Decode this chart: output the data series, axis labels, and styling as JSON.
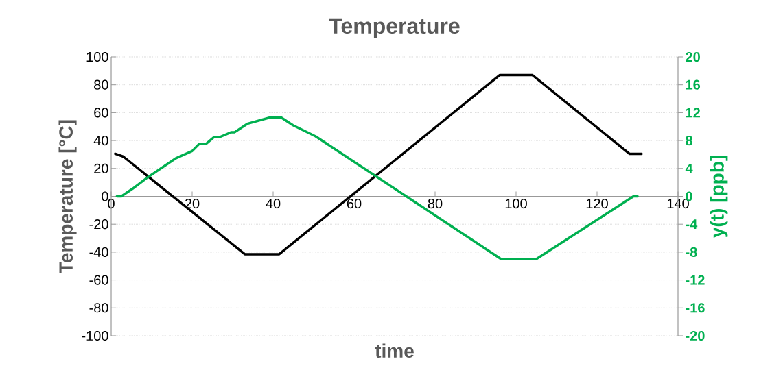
{
  "chart_data": {
    "type": "line",
    "title": "Temperature",
    "xlabel": "time",
    "ylabel": "Temperature [°C]",
    "y2label": "y(t) [ppb]",
    "xlim": [
      0,
      140
    ],
    "xticks": [
      0,
      20,
      40,
      60,
      80,
      100,
      120,
      140
    ],
    "ylim": [
      -100,
      100
    ],
    "yticks": [
      -100,
      -80,
      -60,
      -40,
      -20,
      0,
      20,
      40,
      60,
      80,
      100
    ],
    "y2lim": [
      -20,
      20
    ],
    "y2ticks": [
      -20,
      -16,
      -12,
      -8,
      -4,
      0,
      4,
      8,
      12,
      16,
      20
    ],
    "grid": "y",
    "series": [
      {
        "color": "#000000",
        "x": [
          1,
          3,
          33,
          41.5,
          96,
          104,
          128,
          131
        ],
        "values": [
          30.5,
          28.5,
          -41.5,
          -41.5,
          87,
          87,
          30.5,
          30.5
        ]
      },
      {
        "color": "#00b050",
        "axis": "y2",
        "x": [
          1.4,
          2.5,
          5.3,
          8.7,
          16.1,
          20,
          21.7,
          23.4,
          25.4,
          26.8,
          29.7,
          30.5,
          33.6,
          39.2,
          42,
          44.9,
          50.5,
          96.3,
          105,
          129,
          130
        ],
        "values": [
          0,
          0,
          1.1,
          2.6,
          5.5,
          6.5,
          7.5,
          7.5,
          8.5,
          8.5,
          9.2,
          9.2,
          10.4,
          11.3,
          11.3,
          10.2,
          8.6,
          -9,
          -9,
          0,
          0
        ]
      }
    ]
  }
}
